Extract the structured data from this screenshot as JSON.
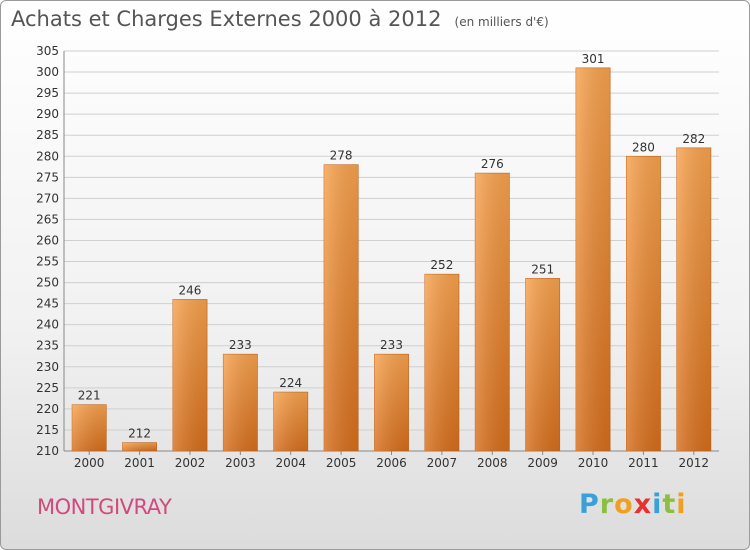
{
  "chart_data": {
    "type": "bar",
    "title": "Achats et Charges Externes 2000 à 2012",
    "subtitle": "(en milliers d'€)",
    "categories": [
      "2000",
      "2001",
      "2002",
      "2003",
      "2004",
      "2005",
      "2006",
      "2007",
      "2008",
      "2009",
      "2010",
      "2011",
      "2012"
    ],
    "values": [
      221,
      212,
      246,
      233,
      224,
      278,
      233,
      252,
      276,
      251,
      301,
      280,
      282
    ],
    "ylim": [
      210,
      305
    ],
    "yticks": [
      210,
      215,
      220,
      225,
      230,
      235,
      240,
      245,
      250,
      255,
      260,
      265,
      270,
      275,
      280,
      285,
      290,
      295,
      300,
      305
    ],
    "grid": true,
    "bar_color": "#f08a2c"
  },
  "location": "MONTGIVRAY",
  "brand": {
    "letters": [
      "P",
      "r",
      "o",
      "x",
      "i",
      "t",
      "i"
    ],
    "colors": [
      "#3aa0d8",
      "#8cbf3f",
      "#f0a020",
      "#e83030",
      "#3aa0d8",
      "#8cbf3f",
      "#f0a020"
    ]
  }
}
